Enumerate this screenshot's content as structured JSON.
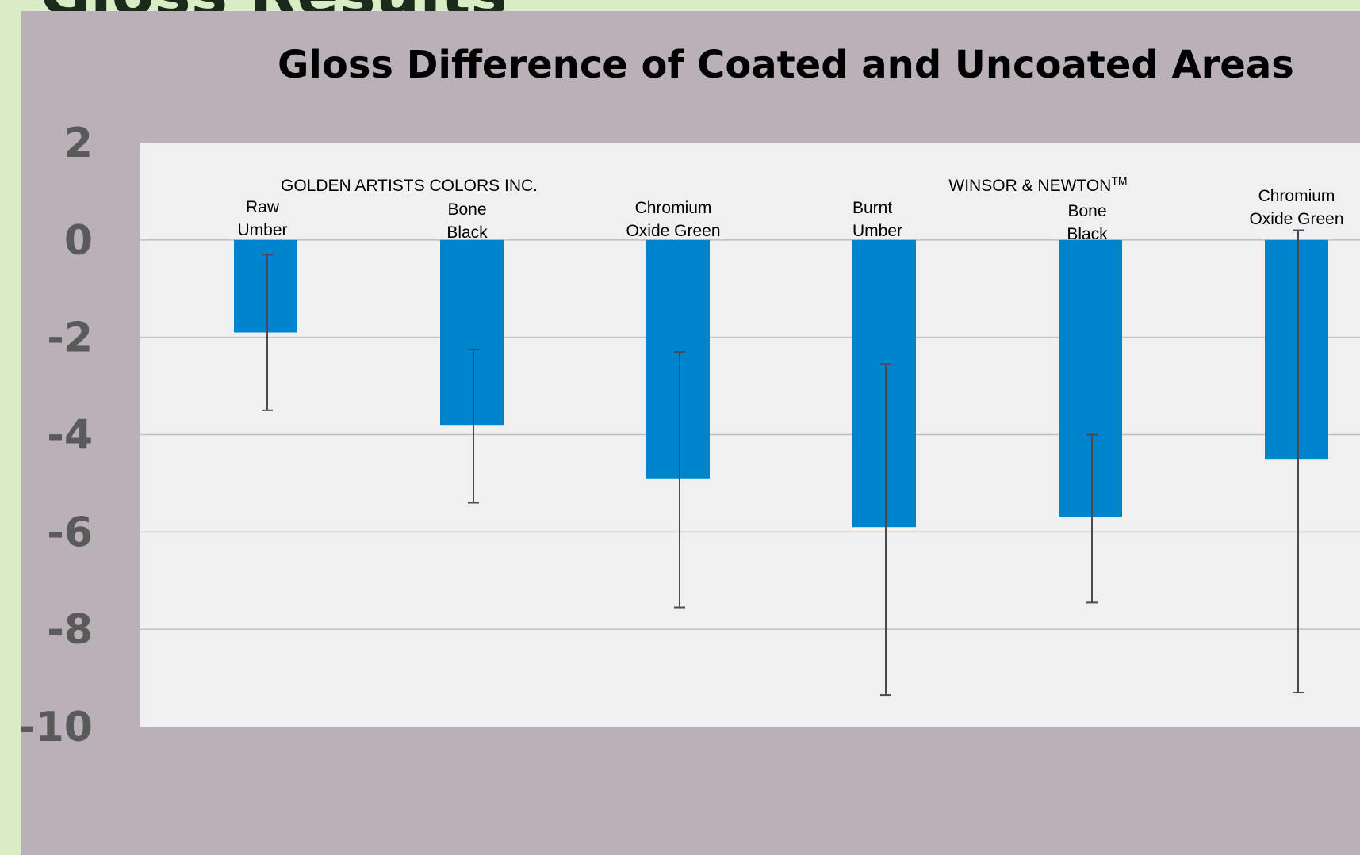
{
  "slide_heading": "Gloss Results",
  "chart_data": {
    "type": "bar",
    "title": "Gloss Difference of Coated and Uncoated Areas",
    "xlabel": "",
    "ylabel": "",
    "ylim": [
      -10,
      2
    ],
    "yticks": [
      2,
      0,
      -2,
      -4,
      -6,
      -8,
      -10
    ],
    "grid": true,
    "colors": {
      "bar": "#0084cc",
      "plot_background": "#f0f0f0",
      "panel_background": "#bab0b7",
      "gridline": "#bfbfbf",
      "error_bar": "#4a4a55"
    },
    "groups": [
      {
        "label": "GOLDEN ARTISTS COLORS INC.",
        "trademark": "",
        "categories": [
          0,
          1,
          2
        ]
      },
      {
        "label": "WINSOR & NEWTON",
        "trademark": "TM",
        "categories": [
          3,
          4,
          5
        ]
      }
    ],
    "categories": [
      [
        "Raw",
        "Umber"
      ],
      [
        "Bone",
        "Black"
      ],
      [
        "Chromium",
        "Oxide Green"
      ],
      [
        "Burnt",
        "Umber"
      ],
      [
        "Bone",
        "Black"
      ],
      [
        "Chromium",
        "Oxide Green"
      ]
    ],
    "values": [
      -1.9,
      -3.8,
      -4.9,
      -5.9,
      -5.7,
      -4.5
    ],
    "error_bars": [
      {
        "low": -3.5,
        "high": -0.3
      },
      {
        "low": -5.4,
        "high": -2.25
      },
      {
        "low": -7.55,
        "high": -2.3
      },
      {
        "low": -9.35,
        "high": -2.55
      },
      {
        "low": -7.45,
        "high": -4.0
      },
      {
        "low": -9.3,
        "high": 0.2
      }
    ]
  }
}
